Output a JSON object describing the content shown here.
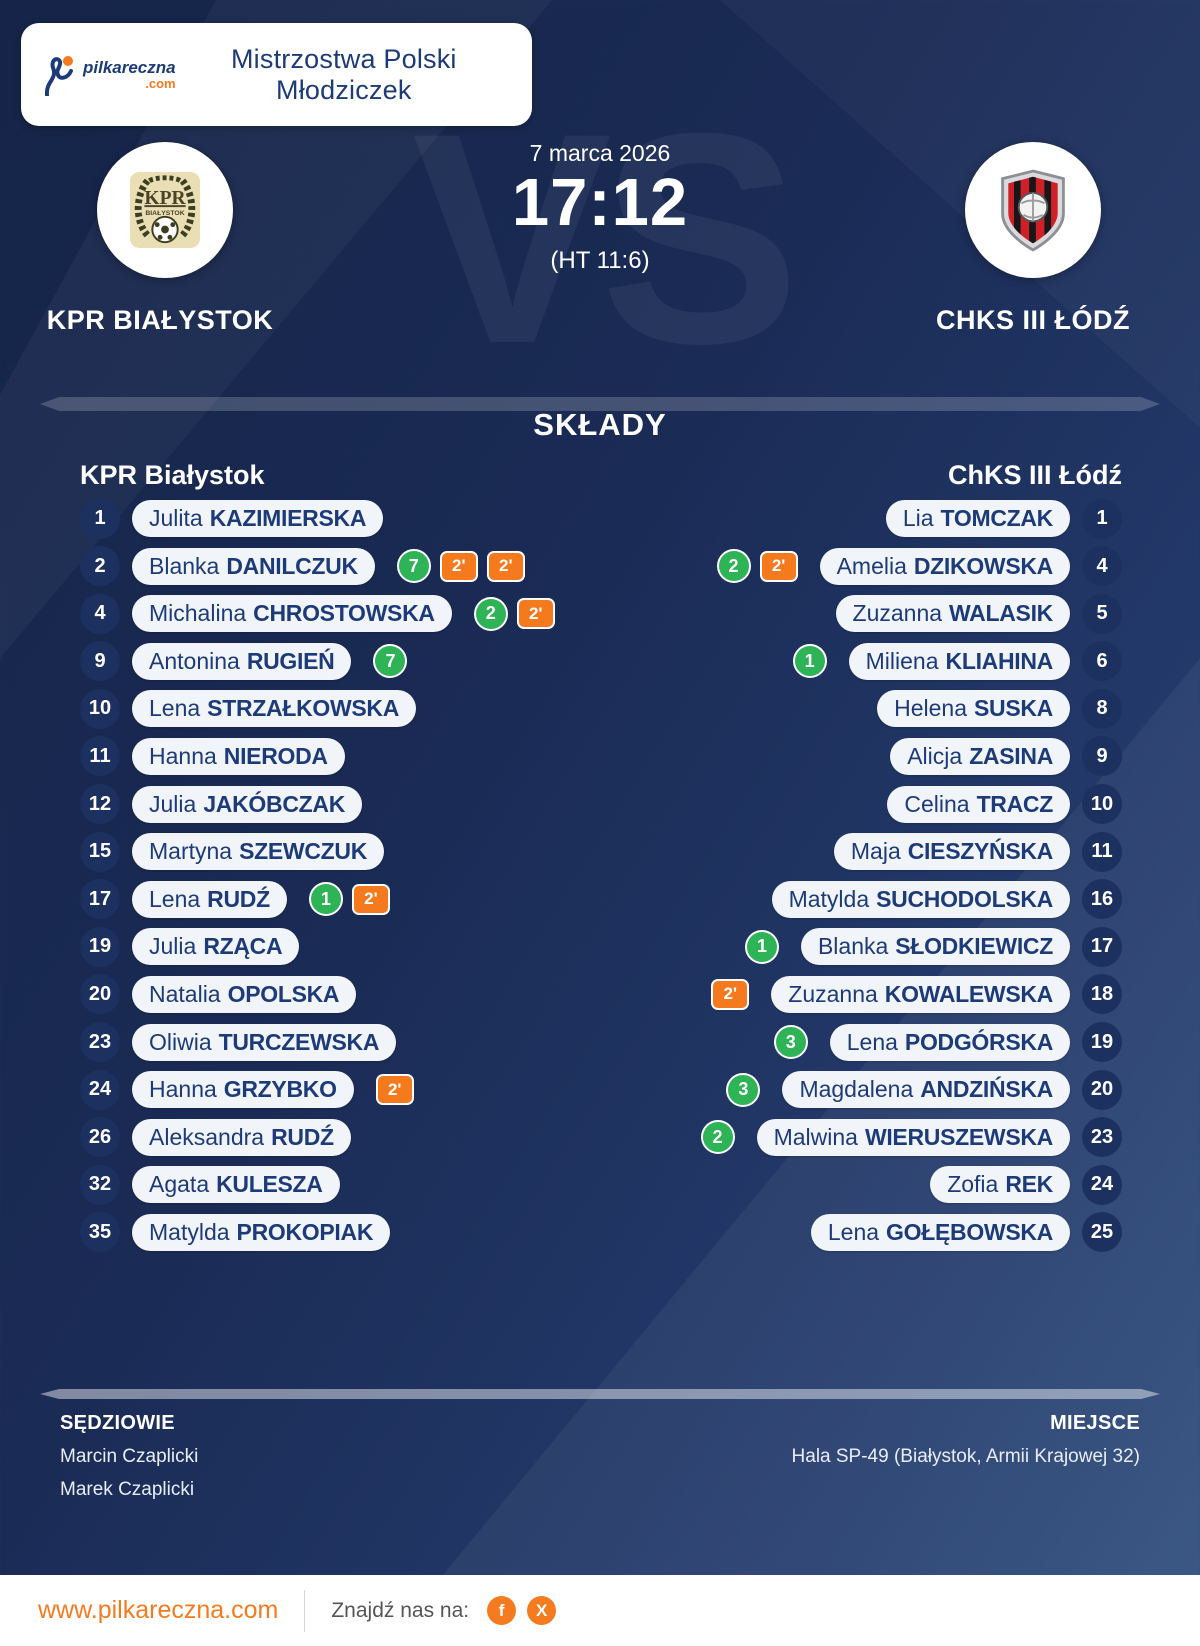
{
  "header": {
    "title": "Mistrzostwa Polski Młodziczek",
    "brand": {
      "name": "pilkareczna",
      "tld": ".com"
    }
  },
  "match": {
    "date": "7 marca 2026",
    "score": "17:12",
    "halftime": "(HT 11:6)",
    "vs_watermark": "VS",
    "home": {
      "name": "KPR BIAŁYSTOK",
      "crest_text": "KPR",
      "crest_subtext": "BIAŁYSTOK"
    },
    "away": {
      "name": "CHKS III ŁÓDŹ"
    }
  },
  "lineups": {
    "title": "SKŁADY",
    "home_team_label": "KPR Białystok",
    "away_team_label": "ChKS III Łódź",
    "home_players": [
      {
        "number": "1",
        "first": "Julita",
        "last": "KAZIMIERSKA",
        "goals": null,
        "penalties": []
      },
      {
        "number": "2",
        "first": "Blanka",
        "last": "DANILCZUK",
        "goals": "7",
        "penalties": [
          "2'",
          "2'"
        ]
      },
      {
        "number": "4",
        "first": "Michalina",
        "last": "CHROSTOWSKA",
        "goals": "2",
        "penalties": [
          "2'"
        ]
      },
      {
        "number": "9",
        "first": "Antonina",
        "last": "RUGIEŃ",
        "goals": "7",
        "penalties": []
      },
      {
        "number": "10",
        "first": "Lena",
        "last": "STRZAŁKOWSKA",
        "goals": null,
        "penalties": []
      },
      {
        "number": "11",
        "first": "Hanna",
        "last": "NIERODA",
        "goals": null,
        "penalties": []
      },
      {
        "number": "12",
        "first": "Julia",
        "last": "JAKÓBCZAK",
        "goals": null,
        "penalties": []
      },
      {
        "number": "15",
        "first": "Martyna",
        "last": "SZEWCZUK",
        "goals": null,
        "penalties": []
      },
      {
        "number": "17",
        "first": "Lena",
        "last": "RUDŹ",
        "goals": "1",
        "penalties": [
          "2'"
        ]
      },
      {
        "number": "19",
        "first": "Julia",
        "last": "RZĄCA",
        "goals": null,
        "penalties": []
      },
      {
        "number": "20",
        "first": "Natalia",
        "last": "OPOLSKA",
        "goals": null,
        "penalties": []
      },
      {
        "number": "23",
        "first": "Oliwia",
        "last": "TURCZEWSKA",
        "goals": null,
        "penalties": []
      },
      {
        "number": "24",
        "first": "Hanna",
        "last": "GRZYBKO",
        "goals": null,
        "penalties": [
          "2'"
        ]
      },
      {
        "number": "26",
        "first": "Aleksandra",
        "last": "RUDŹ",
        "goals": null,
        "penalties": []
      },
      {
        "number": "32",
        "first": "Agata",
        "last": "KULESZA",
        "goals": null,
        "penalties": []
      },
      {
        "number": "35",
        "first": "Matylda",
        "last": "PROKOPIAK",
        "goals": null,
        "penalties": []
      }
    ],
    "away_players": [
      {
        "number": "1",
        "first": "Lia",
        "last": "TOMCZAK",
        "goals": null,
        "penalties": []
      },
      {
        "number": "4",
        "first": "Amelia",
        "last": "DZIKOWSKA",
        "goals": "2",
        "penalties": [
          "2'"
        ]
      },
      {
        "number": "5",
        "first": "Zuzanna",
        "last": "WALASIK",
        "goals": null,
        "penalties": []
      },
      {
        "number": "6",
        "first": "Miliena",
        "last": "KLIAHINA",
        "goals": "1",
        "penalties": []
      },
      {
        "number": "8",
        "first": "Helena",
        "last": "SUSKA",
        "goals": null,
        "penalties": []
      },
      {
        "number": "9",
        "first": "Alicja",
        "last": "ZASINA",
        "goals": null,
        "penalties": []
      },
      {
        "number": "10",
        "first": "Celina",
        "last": "TRACZ",
        "goals": null,
        "penalties": []
      },
      {
        "number": "11",
        "first": "Maja",
        "last": "CIESZYŃSKA",
        "goals": null,
        "penalties": []
      },
      {
        "number": "16",
        "first": "Matylda",
        "last": "SUCHODOLSKA",
        "goals": null,
        "penalties": []
      },
      {
        "number": "17",
        "first": "Blanka",
        "last": "SŁODKIEWICZ",
        "goals": "1",
        "penalties": []
      },
      {
        "number": "18",
        "first": "Zuzanna",
        "last": "KOWALEWSKA",
        "goals": null,
        "penalties": [
          "2'"
        ]
      },
      {
        "number": "19",
        "first": "Lena",
        "last": "PODGÓRSKA",
        "goals": "3",
        "penalties": []
      },
      {
        "number": "20",
        "first": "Magdalena",
        "last": "ANDZIŃSKA",
        "goals": "3",
        "penalties": []
      },
      {
        "number": "23",
        "first": "Malwina",
        "last": "WIERUSZEWSKA",
        "goals": "2",
        "penalties": []
      },
      {
        "number": "24",
        "first": "Zofia",
        "last": "REK",
        "goals": null,
        "penalties": []
      },
      {
        "number": "25",
        "first": "Lena",
        "last": "GOŁĘBOWSKA",
        "goals": null,
        "penalties": []
      }
    ]
  },
  "details": {
    "referees_label": "SĘDZIOWIE",
    "referees": [
      "Marcin Czaplicki",
      "Marek Czaplicki"
    ],
    "venue_label": "MIEJSCE",
    "venue": "Hala SP-49 (Białystok, Armii Krajowej 32)"
  },
  "footer": {
    "website": "www.pilkareczna.com",
    "social_label": "Znajdź nas na:",
    "social_icons": [
      "facebook",
      "x"
    ]
  },
  "colors": {
    "accent_orange": "#F47B20",
    "goal_green": "#2EB357",
    "penalty_orange": "#F5791D",
    "navy_text": "#1D3B79",
    "background_navy": "#1A2B55"
  }
}
